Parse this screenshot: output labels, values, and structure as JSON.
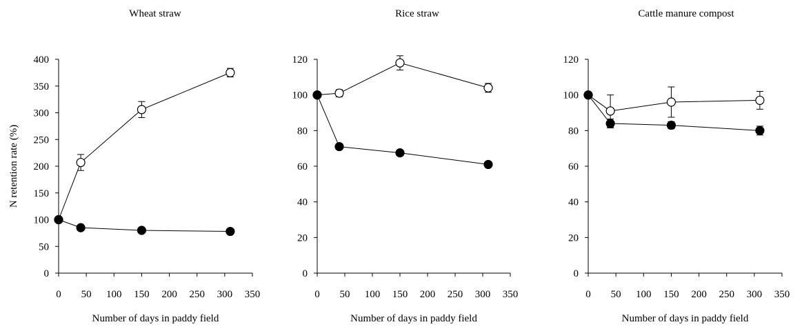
{
  "chart_data": [
    {
      "type": "line",
      "title": "Wheat straw",
      "xlabel": "Number of days in paddy field",
      "ylabel": "N retention rate (%)",
      "xlim": [
        0,
        350
      ],
      "ylim": [
        0,
        400
      ],
      "xticks": [
        0,
        50,
        100,
        150,
        200,
        250,
        300,
        350
      ],
      "yticks": [
        0,
        50,
        100,
        150,
        200,
        250,
        300,
        350,
        400
      ],
      "grid": false,
      "series": [
        {
          "marker": "open-circle",
          "x": [
            0,
            40,
            150,
            310
          ],
          "y": [
            100,
            207,
            306,
            375
          ],
          "err": [
            0,
            15,
            15,
            8
          ]
        },
        {
          "marker": "filled-circle",
          "x": [
            0,
            40,
            150,
            310
          ],
          "y": [
            100,
            85,
            80,
            78
          ],
          "err": [
            0,
            3,
            5,
            3
          ]
        }
      ]
    },
    {
      "type": "line",
      "title": "Rice straw",
      "xlabel": "Number of days in paddy field",
      "ylabel": "",
      "xlim": [
        0,
        350
      ],
      "ylim": [
        0,
        120
      ],
      "xticks": [
        0,
        50,
        100,
        150,
        200,
        250,
        300,
        350
      ],
      "yticks": [
        0,
        20,
        40,
        60,
        80,
        100,
        120
      ],
      "grid": false,
      "series": [
        {
          "marker": "open-circle",
          "x": [
            0,
            40,
            150,
            310
          ],
          "y": [
            100,
            101,
            118,
            104
          ],
          "err": [
            0,
            2,
            4,
            2.5
          ]
        },
        {
          "marker": "filled-circle",
          "x": [
            0,
            40,
            150,
            310
          ],
          "y": [
            100,
            71,
            67.5,
            61
          ],
          "err": [
            0,
            1,
            1,
            1
          ]
        }
      ]
    },
    {
      "type": "line",
      "title": "Cattle manure compost",
      "xlabel": "Number of days in paddy field",
      "ylabel": "",
      "xlim": [
        0,
        350
      ],
      "ylim": [
        0,
        120
      ],
      "xticks": [
        0,
        50,
        100,
        150,
        200,
        250,
        300,
        350
      ],
      "yticks": [
        0,
        20,
        40,
        60,
        80,
        100,
        120
      ],
      "grid": false,
      "series": [
        {
          "marker": "open-circle",
          "x": [
            0,
            40,
            150,
            310
          ],
          "y": [
            100,
            91,
            96,
            97
          ],
          "err": [
            0,
            9,
            8.5,
            5
          ]
        },
        {
          "marker": "filled-circle",
          "x": [
            0,
            40,
            150,
            310
          ],
          "y": [
            100,
            84,
            83,
            80
          ],
          "err": [
            0,
            2.5,
            2,
            2.5
          ]
        }
      ]
    }
  ]
}
